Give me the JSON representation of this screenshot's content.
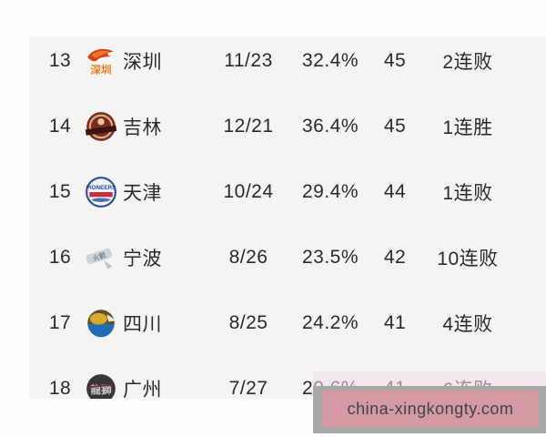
{
  "page": {
    "background": "#fdfdfd"
  },
  "table": {
    "background": "#f4f4f3",
    "text_color": "#2a2a2a",
    "columns": [
      "rank",
      "logo",
      "team",
      "record",
      "win_pct",
      "points",
      "streak"
    ],
    "rows": [
      {
        "rank": "13",
        "team": "深圳",
        "logo_key": "shenzhen",
        "logo_name": "shenzhen-leopards-logo",
        "record": "11/23",
        "win_pct": "32.4%",
        "points": "45",
        "streak": "2连败"
      },
      {
        "rank": "14",
        "team": "吉林",
        "logo_key": "jilin",
        "logo_name": "jilin-tigers-logo",
        "record": "12/21",
        "win_pct": "36.4%",
        "points": "45",
        "streak": "1连胜"
      },
      {
        "rank": "15",
        "team": "天津",
        "logo_key": "tianjin",
        "logo_name": "tianjin-pioneers-logo",
        "record": "10/24",
        "win_pct": "29.4%",
        "points": "44",
        "streak": "1连败"
      },
      {
        "rank": "16",
        "team": "宁波",
        "logo_key": "ningbo",
        "logo_name": "ningbo-rockets-logo",
        "record": "8/26",
        "win_pct": "23.5%",
        "points": "42",
        "streak": "10连败"
      },
      {
        "rank": "17",
        "team": "四川",
        "logo_key": "sichuan",
        "logo_name": "sichuan-blue-whales-logo",
        "record": "8/25",
        "win_pct": "24.2%",
        "points": "41",
        "streak": "4连败"
      },
      {
        "rank": "18",
        "team": "广州",
        "logo_key": "guangzhou",
        "logo_name": "guangzhou-loong-lions-logo",
        "record": "7/27",
        "win_pct": "20.6%",
        "points": "41",
        "streak": "6连败"
      }
    ]
  },
  "watermark": {
    "text": "china-xingkongty.com",
    "box_color": "#d898a1",
    "shadow_color": "#a8a8a8",
    "text_color": "#3a463f"
  }
}
